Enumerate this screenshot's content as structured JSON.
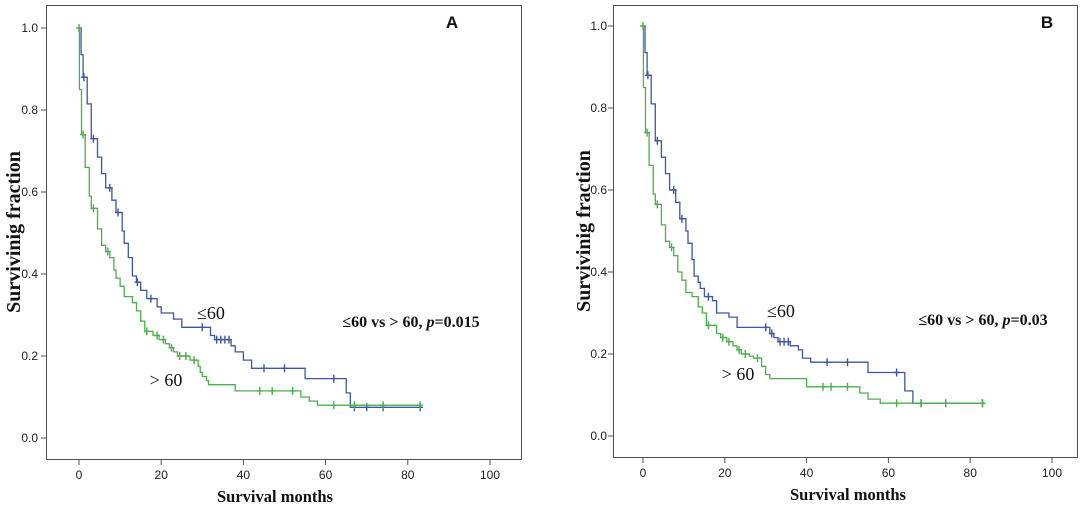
{
  "chart_data": [
    {
      "type": "line",
      "panel_label": "A",
      "xlabel": "Survival months",
      "ylabel": "Survivinig fraction",
      "xlim": [
        0,
        100
      ],
      "ylim": [
        0,
        1.0
      ],
      "x_ticks": [
        "0",
        "20",
        "40",
        "60",
        "80",
        "100"
      ],
      "y_ticks": [
        "0.0",
        "0.2",
        "0.4",
        "0.6",
        "0.8",
        "1.0"
      ],
      "grid": false,
      "annotation": {
        "prefix": "≤60 vs > 60, ",
        "p_symbol": "p",
        "p_value": "=0.015"
      },
      "series": [
        {
          "name": "≤60",
          "color": "#3e56a8",
          "steps": [
            [
              0,
              1.0
            ],
            [
              0.5,
              0.935
            ],
            [
              1,
              0.88
            ],
            [
              2,
              0.815
            ],
            [
              3,
              0.73
            ],
            [
              4.5,
              0.685
            ],
            [
              5.5,
              0.645
            ],
            [
              6.5,
              0.61
            ],
            [
              8,
              0.58
            ],
            [
              9,
              0.55
            ],
            [
              10.5,
              0.505
            ],
            [
              11,
              0.475
            ],
            [
              12,
              0.44
            ],
            [
              13,
              0.395
            ],
            [
              14,
              0.38
            ],
            [
              15,
              0.36
            ],
            [
              16.5,
              0.34
            ],
            [
              19,
              0.32
            ],
            [
              20,
              0.305
            ],
            [
              23,
              0.29
            ],
            [
              25,
              0.27
            ],
            [
              32,
              0.25
            ],
            [
              33,
              0.24
            ],
            [
              37,
              0.225
            ],
            [
              38,
              0.21
            ],
            [
              40,
              0.19
            ],
            [
              42,
              0.17
            ],
            [
              55,
              0.145
            ],
            [
              65,
              0.11
            ],
            [
              66,
              0.075
            ]
          ],
          "censored": [
            1.2,
            3.5,
            7.5,
            9.5,
            14.2,
            17.5,
            30,
            33.5,
            34.5,
            35.5,
            36.5,
            45,
            50,
            62,
            67,
            70,
            74,
            83
          ]
        },
        {
          "name": "> 60",
          "color": "#4cb04c",
          "steps": [
            [
              0,
              1.0
            ],
            [
              0.1,
              0.85
            ],
            [
              0.6,
              0.74
            ],
            [
              1.5,
              0.66
            ],
            [
              2.5,
              0.59
            ],
            [
              3,
              0.56
            ],
            [
              4.5,
              0.51
            ],
            [
              5.5,
              0.47
            ],
            [
              6.5,
              0.455
            ],
            [
              7.5,
              0.44
            ],
            [
              8.5,
              0.41
            ],
            [
              9,
              0.39
            ],
            [
              10,
              0.37
            ],
            [
              11,
              0.345
            ],
            [
              13,
              0.33
            ],
            [
              14,
              0.31
            ],
            [
              15,
              0.285
            ],
            [
              16,
              0.26
            ],
            [
              18,
              0.25
            ],
            [
              19.5,
              0.24
            ],
            [
              21,
              0.23
            ],
            [
              22,
              0.22
            ],
            [
              23,
              0.21
            ],
            [
              24,
              0.2
            ],
            [
              27,
              0.19
            ],
            [
              29,
              0.175
            ],
            [
              29.5,
              0.16
            ],
            [
              30,
              0.15
            ],
            [
              31,
              0.14
            ],
            [
              31.5,
              0.13
            ],
            [
              38,
              0.115
            ],
            [
              54,
              0.1
            ],
            [
              56,
              0.09
            ],
            [
              58,
              0.08
            ]
          ],
          "censored": [
            0,
            1,
            3.5,
            7,
            16.5,
            19,
            20.5,
            22.5,
            24.5,
            26,
            28,
            44,
            47,
            52,
            62,
            67,
            74,
            83
          ]
        }
      ]
    },
    {
      "type": "line",
      "panel_label": "B",
      "xlabel": "Survival months",
      "ylabel": "Survivinig fraction",
      "xlim": [
        0,
        100
      ],
      "ylim": [
        0,
        1.0
      ],
      "x_ticks": [
        "0",
        "20",
        "40",
        "60",
        "80",
        "100"
      ],
      "y_ticks": [
        "0.0",
        "0.2",
        "0.4",
        "0.6",
        "0.8",
        "1.0"
      ],
      "grid": false,
      "annotation": {
        "prefix": "≤60 vs > 60, ",
        "p_symbol": "p",
        "p_value": "=0.03"
      },
      "series": [
        {
          "name": "≤60",
          "color": "#3e56a8",
          "steps": [
            [
              0,
              1.0
            ],
            [
              0.5,
              0.935
            ],
            [
              1,
              0.88
            ],
            [
              2,
              0.81
            ],
            [
              3,
              0.72
            ],
            [
              4.5,
              0.68
            ],
            [
              5.5,
              0.64
            ],
            [
              6.5,
              0.6
            ],
            [
              8,
              0.57
            ],
            [
              9,
              0.53
            ],
            [
              10.5,
              0.5
            ],
            [
              11,
              0.47
            ],
            [
              12,
              0.43
            ],
            [
              12.5,
              0.39
            ],
            [
              13.5,
              0.375
            ],
            [
              14,
              0.36
            ],
            [
              15,
              0.34
            ],
            [
              17,
              0.33
            ],
            [
              18,
              0.3
            ],
            [
              21,
              0.29
            ],
            [
              23,
              0.265
            ],
            [
              31,
              0.25
            ],
            [
              32,
              0.24
            ],
            [
              33,
              0.23
            ],
            [
              36,
              0.22
            ],
            [
              38,
              0.21
            ],
            [
              39,
              0.19
            ],
            [
              41,
              0.18
            ],
            [
              55,
              0.155
            ],
            [
              64,
              0.11
            ],
            [
              66,
              0.08
            ]
          ],
          "censored": [
            1.2,
            3.5,
            7.5,
            9.5,
            16,
            30,
            31.5,
            33.5,
            34.5,
            35.5,
            45,
            50,
            62,
            68,
            74,
            83
          ]
        },
        {
          "name": "> 60",
          "color": "#4cb04c",
          "steps": [
            [
              0,
              1.0
            ],
            [
              0.1,
              0.85
            ],
            [
              0.6,
              0.74
            ],
            [
              1.5,
              0.66
            ],
            [
              2.5,
              0.59
            ],
            [
              3,
              0.565
            ],
            [
              4.5,
              0.515
            ],
            [
              5.5,
              0.475
            ],
            [
              6.5,
              0.46
            ],
            [
              7.5,
              0.44
            ],
            [
              8.5,
              0.4
            ],
            [
              9.5,
              0.38
            ],
            [
              10.5,
              0.35
            ],
            [
              12,
              0.34
            ],
            [
              13.5,
              0.315
            ],
            [
              14.5,
              0.3
            ],
            [
              15.5,
              0.27
            ],
            [
              18,
              0.25
            ],
            [
              19,
              0.24
            ],
            [
              20.5,
              0.23
            ],
            [
              22,
              0.22
            ],
            [
              23,
              0.21
            ],
            [
              24,
              0.2
            ],
            [
              26,
              0.195
            ],
            [
              27,
              0.19
            ],
            [
              29,
              0.17
            ],
            [
              30,
              0.15
            ],
            [
              31,
              0.14
            ],
            [
              40,
              0.12
            ],
            [
              53,
              0.105
            ],
            [
              55,
              0.09
            ],
            [
              58,
              0.08
            ]
          ],
          "censored": [
            0,
            1,
            3.5,
            7,
            16,
            19.5,
            21,
            23.5,
            25,
            28,
            44,
            46,
            50,
            62,
            68,
            74,
            83
          ]
        }
      ]
    }
  ]
}
